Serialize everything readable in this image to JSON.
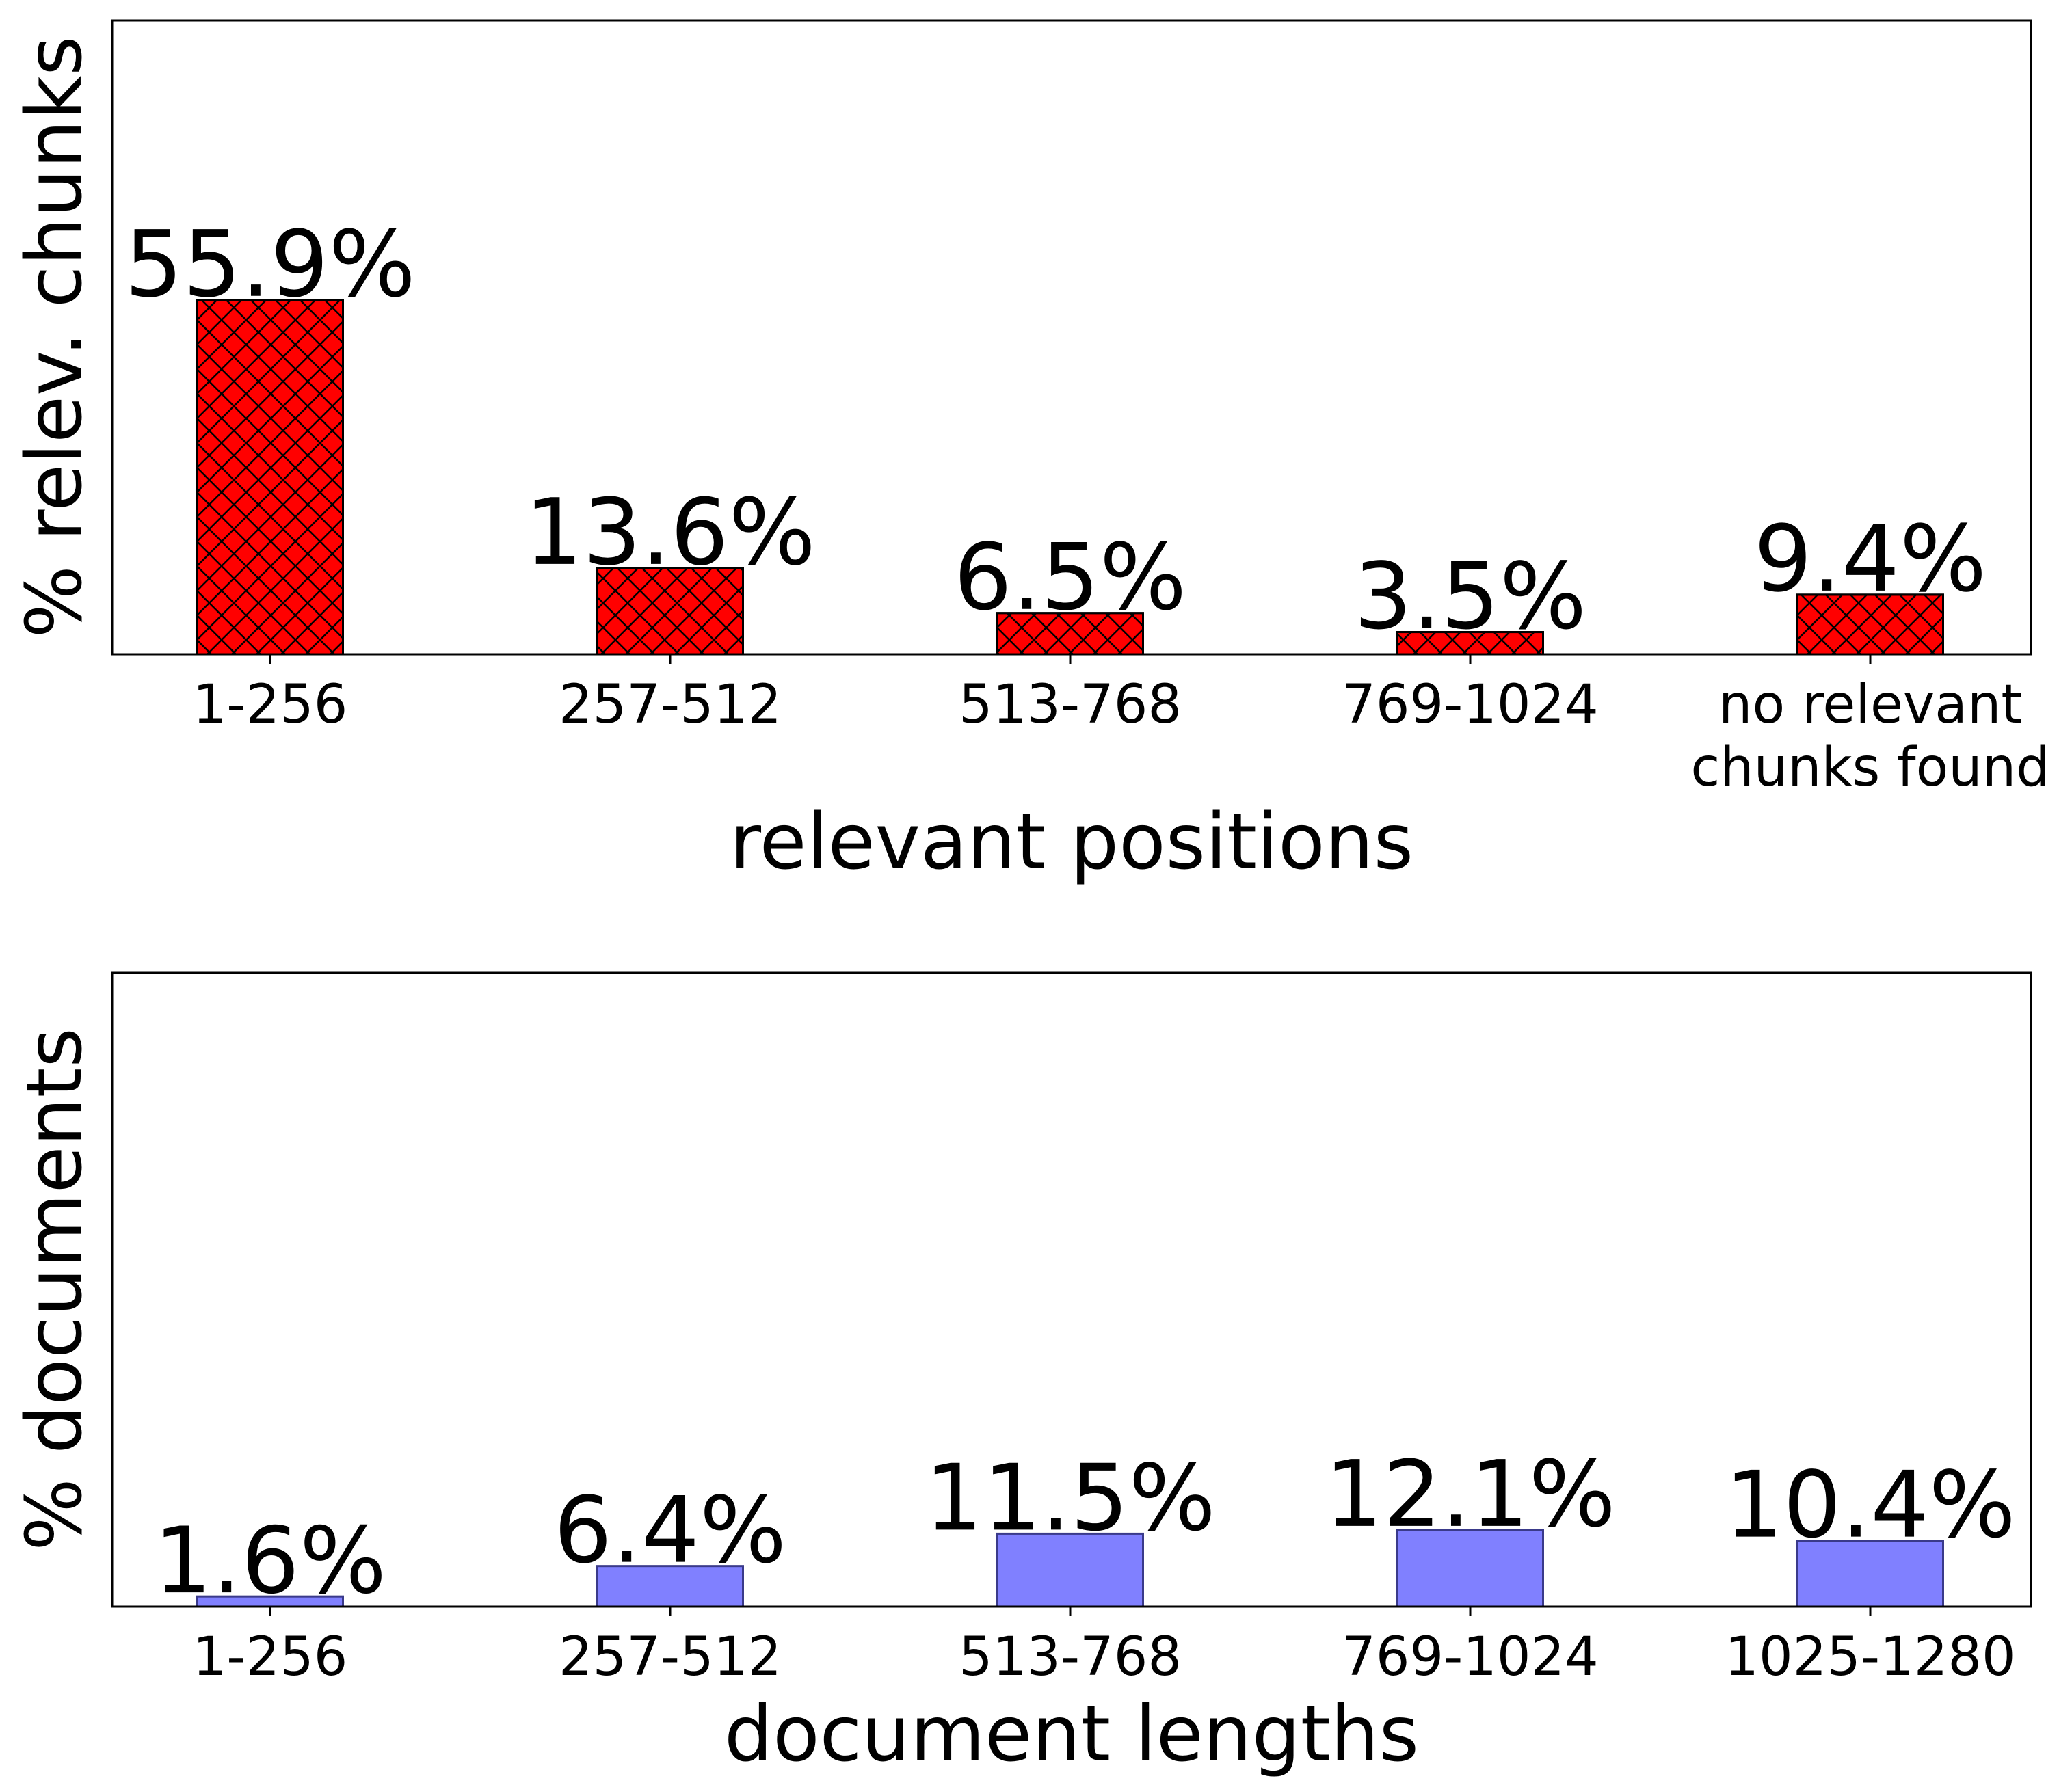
{
  "chart_data": [
    {
      "type": "bar",
      "xlabel": "relevant positions",
      "ylabel": "% relev. chunks",
      "categories": [
        [
          "1-256"
        ],
        [
          "257-512"
        ],
        [
          "513-768"
        ],
        [
          "769-1024"
        ],
        [
          "no relevant",
          "chunks found"
        ]
      ],
      "values": [
        55.9,
        13.6,
        6.5,
        3.5,
        9.4
      ],
      "value_labels": [
        "55.9%",
        "13.6%",
        "6.5%",
        "3.5%",
        "9.4%"
      ],
      "ylim": [
        0,
        100
      ],
      "color": "#ff0000",
      "edge_color": "#000000",
      "hatch": "crosshatch",
      "grid": false
    },
    {
      "type": "bar",
      "xlabel": "document lengths",
      "ylabel": "% documents",
      "categories": [
        [
          "1-256"
        ],
        [
          "257-512"
        ],
        [
          "513-768"
        ],
        [
          "769-1024"
        ],
        [
          "1025-1280"
        ]
      ],
      "values": [
        1.6,
        6.4,
        11.5,
        12.1,
        10.4
      ],
      "value_labels": [
        "1.6%",
        "6.4%",
        "11.5%",
        "12.1%",
        "10.4%"
      ],
      "ylim": [
        0,
        100
      ],
      "color": "#8080ff",
      "edge_color": "#3a3a8a",
      "hatch": "none",
      "grid": false
    }
  ]
}
